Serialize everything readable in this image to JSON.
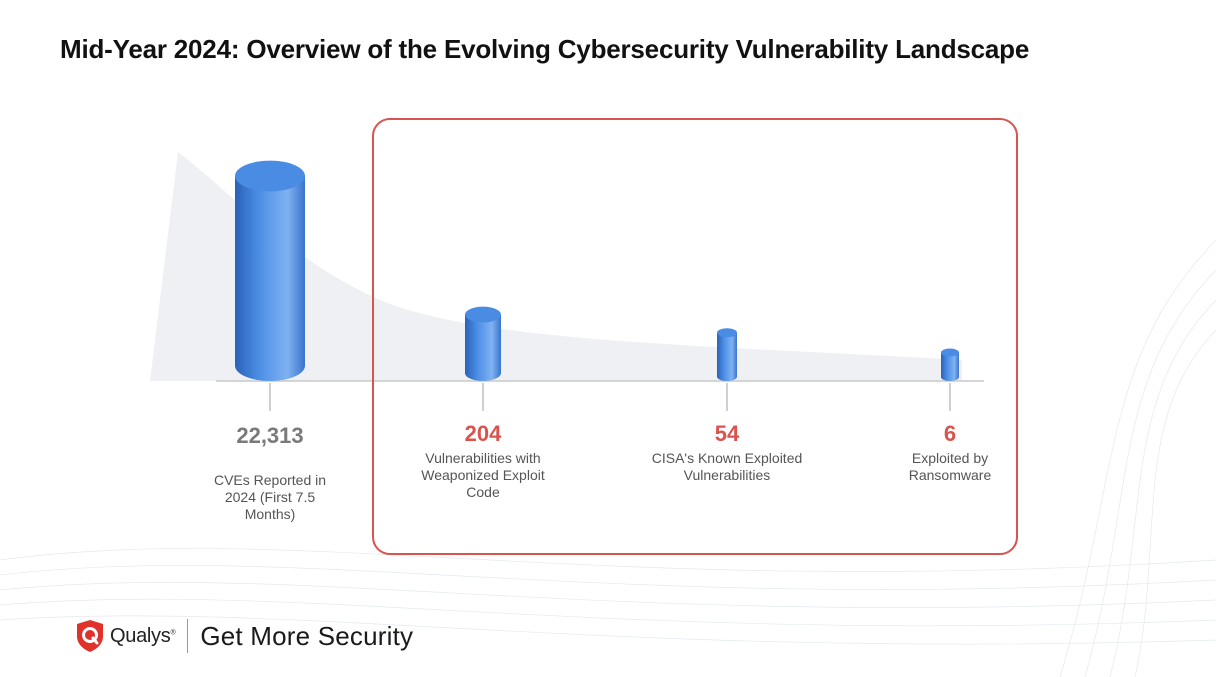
{
  "title": "Mid-Year 2024: Overview of the Evolving Cybersecurity Vulnerability Landscape",
  "colors": {
    "bar": "#3f7fd9",
    "highlight": "#d9534f",
    "neutral_value": "#7a7a7a"
  },
  "chart_data": {
    "type": "bar",
    "style": "3d-cylinder",
    "title": "Mid-Year 2024: Overview of the Evolving Cybersecurity Vulnerability Landscape",
    "categories": [
      "CVEs Reported in 2024 (First 7.5 Months)",
      "Vulnerabilities with Weaponized Exploit Code",
      "CISA's Known Exploited Vulnerabilities",
      "Exploited by Ransomware"
    ],
    "values": [
      22313,
      204,
      54,
      6
    ],
    "value_labels": [
      "22,313",
      "204",
      "54",
      "6"
    ],
    "highlighted": [
      false,
      true,
      true,
      true
    ],
    "scale": "non-linear (illustrative)",
    "xlabel": "",
    "ylabel": ""
  },
  "metrics": [
    {
      "value": "22,313",
      "label": "CVEs Reported in 2024 (First 7.5 Months)"
    },
    {
      "value": "204",
      "label": "Vulnerabilities with Weaponized Exploit Code"
    },
    {
      "value": "54",
      "label": "CISA's Known Exploited Vulnerabilities"
    },
    {
      "value": "6",
      "label": "Exploited by Ransomware"
    }
  ],
  "footer": {
    "brand": "Qualys",
    "brand_mark": "®",
    "logo_icon": "qualys-shield-icon",
    "tagline": "Get More Security"
  }
}
